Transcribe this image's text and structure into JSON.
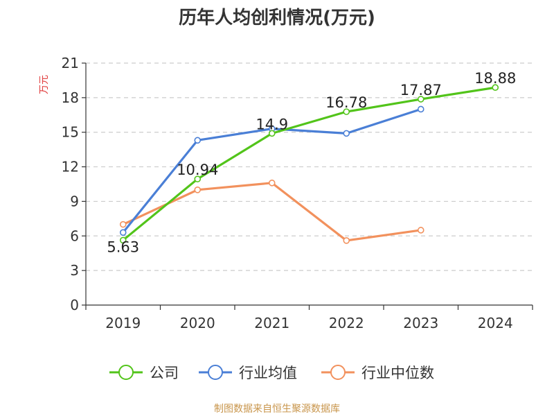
{
  "chart_data": {
    "type": "line",
    "title": "历年人均创利情况(万元)",
    "ylabel": "万元",
    "categories": [
      "2019",
      "2020",
      "2021",
      "2022",
      "2023",
      "2024"
    ],
    "ylim": [
      0,
      21
    ],
    "yticks": [
      0,
      3,
      6,
      9,
      12,
      15,
      18,
      21
    ],
    "grid": true,
    "legend_position": "bottom",
    "series": [
      {
        "name": "公司",
        "color": "#52c41a",
        "values": [
          5.63,
          10.94,
          14.9,
          16.78,
          17.87,
          18.88
        ],
        "labels": [
          "5.63",
          "10.94",
          "14.9",
          "16.78",
          "17.87",
          "18.88"
        ]
      },
      {
        "name": "行业均值",
        "color": "#4a7fd6",
        "values": [
          6.3,
          14.3,
          15.3,
          14.9,
          17.0,
          null
        ]
      },
      {
        "name": "行业中位数",
        "color": "#f2915d",
        "values": [
          7.0,
          10.0,
          10.6,
          5.6,
          6.5,
          null
        ]
      }
    ]
  },
  "source": "制图数据来自恒生聚源数据库",
  "colors": {
    "axis": "#333333",
    "grid": "#cccccc",
    "ylabel": "#e03c3c",
    "source": "#c8954b"
  }
}
